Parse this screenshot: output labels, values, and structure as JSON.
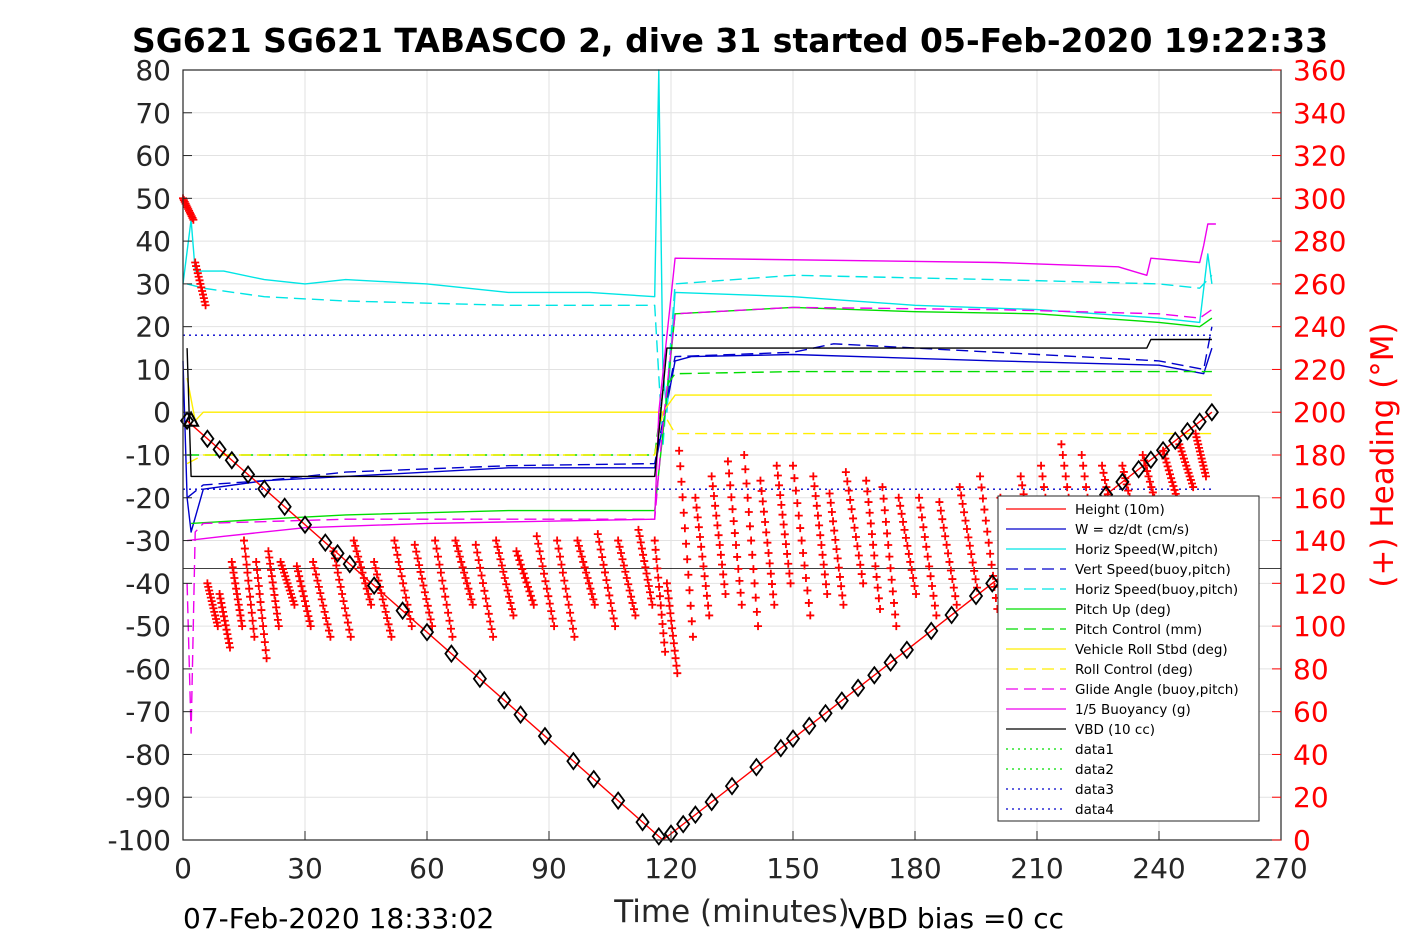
{
  "chart_data": {
    "type": "line",
    "title": "SG621 SG621 TABASCO 2, dive 31 started 05-Feb-2020 19:22:33",
    "xlabel": "Time (minutes)",
    "ylabel": "",
    "y2label": "(+) Heading (°M)",
    "xlim": [
      0,
      270
    ],
    "ylim": [
      -100,
      80
    ],
    "y2lim": [
      0,
      360
    ],
    "x_ticks": [
      "0",
      "30",
      "60",
      "90",
      "120",
      "150",
      "180",
      "210",
      "240",
      "270"
    ],
    "y_ticks": [
      "80",
      "70",
      "60",
      "50",
      "40",
      "30",
      "20",
      "10",
      "0",
      "-10",
      "-20",
      "-30",
      "-40",
      "-50",
      "-60",
      "-70",
      "-80",
      "-90",
      "-100"
    ],
    "y2_ticks": [
      "360",
      "340",
      "320",
      "300",
      "280",
      "260",
      "240",
      "220",
      "200",
      "180",
      "160",
      "140",
      "120",
      "100",
      "80",
      "60",
      "40",
      "20",
      "0"
    ],
    "grid": true,
    "legend_position": "bottom-right",
    "footer_left": "07-Feb-2020 18:33:02",
    "footer_right": "VBD bias =0 cc",
    "series": [
      {
        "name": "Height (10m)",
        "color": "#ff0000",
        "style": "solid",
        "points": [
          [
            1,
            -2
          ],
          [
            118,
            -100
          ],
          [
            253,
            0
          ]
        ]
      },
      {
        "name": "W = dz/dt (cm/s)",
        "color": "#0000cc",
        "style": "solid",
        "points": [
          [
            0,
            12
          ],
          [
            1,
            -20
          ],
          [
            2,
            -28
          ],
          [
            5,
            -18
          ],
          [
            20,
            -16
          ],
          [
            40,
            -15
          ],
          [
            80,
            -13
          ],
          [
            116,
            -13
          ],
          [
            118,
            -3
          ],
          [
            121,
            12
          ],
          [
            125,
            13
          ],
          [
            150,
            13.5
          ],
          [
            200,
            12
          ],
          [
            240,
            11
          ],
          [
            251,
            9
          ],
          [
            253,
            15
          ]
        ]
      },
      {
        "name": "Horiz Speed(W,pitch)",
        "color": "#00e5e5",
        "style": "solid",
        "points": [
          [
            0,
            30
          ],
          [
            2,
            45
          ],
          [
            3,
            33
          ],
          [
            10,
            33
          ],
          [
            20,
            31
          ],
          [
            30,
            30
          ],
          [
            40,
            31
          ],
          [
            60,
            30
          ],
          [
            80,
            28
          ],
          [
            100,
            28
          ],
          [
            116,
            27
          ],
          [
            117,
            80
          ],
          [
            118,
            10
          ],
          [
            119,
            0
          ],
          [
            121,
            28
          ],
          [
            150,
            27
          ],
          [
            180,
            25
          ],
          [
            210,
            24
          ],
          [
            240,
            22
          ],
          [
            250,
            21
          ],
          [
            252,
            37
          ],
          [
            253,
            30
          ]
        ]
      },
      {
        "name": "Vert Speed(buoy,pitch)",
        "color": "#0000cc",
        "style": "dashed",
        "points": [
          [
            1,
            -20
          ],
          [
            5,
            -17
          ],
          [
            20,
            -16
          ],
          [
            40,
            -14
          ],
          [
            80,
            -12.5
          ],
          [
            116,
            -12
          ],
          [
            118,
            -2
          ],
          [
            121,
            13
          ],
          [
            150,
            14
          ],
          [
            160,
            16
          ],
          [
            200,
            14
          ],
          [
            240,
            12
          ],
          [
            251,
            10
          ],
          [
            253,
            20
          ]
        ]
      },
      {
        "name": "Horiz Speed(buoy,pitch)",
        "color": "#00e5e5",
        "style": "dashed",
        "points": [
          [
            1,
            30
          ],
          [
            5,
            29
          ],
          [
            20,
            27
          ],
          [
            40,
            26
          ],
          [
            80,
            25
          ],
          [
            116,
            25
          ],
          [
            118,
            -8
          ],
          [
            121,
            30
          ],
          [
            150,
            32
          ],
          [
            200,
            31
          ],
          [
            240,
            30
          ],
          [
            250,
            29
          ],
          [
            253,
            32
          ]
        ]
      },
      {
        "name": "Pitch Up (deg)",
        "color": "#00dd00",
        "style": "solid",
        "points": [
          [
            2,
            -26
          ],
          [
            20,
            -25
          ],
          [
            40,
            -24
          ],
          [
            80,
            -23
          ],
          [
            116,
            -23
          ],
          [
            118,
            -5
          ],
          [
            121,
            23
          ],
          [
            150,
            24.5
          ],
          [
            180,
            23.5
          ],
          [
            210,
            23
          ],
          [
            240,
            21
          ],
          [
            250,
            20
          ],
          [
            253,
            22
          ]
        ]
      },
      {
        "name": "Pitch Control (mm)",
        "color": "#00dd00",
        "style": "dashed",
        "points": [
          [
            1,
            -10
          ],
          [
            40,
            -10
          ],
          [
            116,
            -10
          ],
          [
            118,
            5
          ],
          [
            121,
            9
          ],
          [
            150,
            9.5
          ],
          [
            200,
            9.5
          ],
          [
            240,
            9.5
          ],
          [
            253,
            9.5
          ]
        ]
      },
      {
        "name": "Vehicle Roll Stbd (deg)",
        "color": "#ffee00",
        "style": "solid",
        "points": [
          [
            1,
            8
          ],
          [
            3,
            -2
          ],
          [
            5,
            0
          ],
          [
            116,
            0
          ],
          [
            118,
            0
          ],
          [
            121,
            4
          ],
          [
            253,
            4
          ]
        ]
      },
      {
        "name": "Roll Control (deg)",
        "color": "#ffee00",
        "style": "dashed",
        "points": [
          [
            1,
            -12
          ],
          [
            5,
            -10
          ],
          [
            116,
            -10
          ],
          [
            118,
            0
          ],
          [
            121,
            -5
          ],
          [
            253,
            -5
          ]
        ]
      },
      {
        "name": "Glide Angle (buoy,pitch)",
        "color": "#ee00ee",
        "style": "dashed",
        "points": [
          [
            1,
            -40
          ],
          [
            2,
            -75
          ],
          [
            3,
            -28
          ],
          [
            5,
            -26
          ],
          [
            40,
            -25
          ],
          [
            116,
            -25
          ],
          [
            118,
            -3
          ],
          [
            121,
            23
          ],
          [
            150,
            24.5
          ],
          [
            200,
            24
          ],
          [
            240,
            23
          ],
          [
            250,
            22
          ],
          [
            253,
            24
          ]
        ]
      },
      {
        "name": "1/5 Buoyancy (g)",
        "color": "#ee00ee",
        "style": "solid",
        "points": [
          [
            1,
            -30
          ],
          [
            10,
            -29
          ],
          [
            30,
            -27
          ],
          [
            60,
            -26
          ],
          [
            116,
            -25
          ],
          [
            117,
            0
          ],
          [
            121,
            36
          ],
          [
            200,
            35
          ],
          [
            230,
            34
          ],
          [
            237,
            32
          ],
          [
            238,
            36
          ],
          [
            250,
            35
          ],
          [
            251,
            39
          ],
          [
            252,
            44
          ],
          [
            254,
            44
          ]
        ]
      },
      {
        "name": "VBD (10 cc)",
        "color": "#000000",
        "style": "solid",
        "points": [
          [
            1,
            15
          ],
          [
            2,
            -15
          ],
          [
            116,
            -15
          ],
          [
            117,
            -5
          ],
          [
            119,
            15
          ],
          [
            237,
            15
          ],
          [
            238,
            17
          ],
          [
            253,
            17
          ]
        ]
      },
      {
        "name": "data1",
        "color": "#00dd00",
        "style": "dotted",
        "points": []
      },
      {
        "name": "data2",
        "color": "#00dd00",
        "style": "dotted",
        "points": []
      },
      {
        "name": "data3",
        "color": "#0000cc",
        "style": "dotted",
        "points": [
          [
            0,
            18
          ],
          [
            253,
            18
          ]
        ]
      },
      {
        "name": "data4",
        "color": "#0000cc",
        "style": "dotted",
        "points": [
          [
            0,
            -18
          ],
          [
            253,
            -18
          ]
        ]
      }
    ],
    "reference_lines": [
      {
        "y": -36.5,
        "color": "#000000"
      }
    ],
    "depth_markers": {
      "color": "#000000",
      "x": [
        1,
        6,
        9,
        12,
        16,
        20,
        25,
        30,
        35,
        38,
        41,
        47,
        54,
        60,
        66,
        73,
        79,
        83,
        89,
        96,
        101,
        107,
        113,
        117,
        120,
        123,
        126,
        130,
        135,
        141,
        147,
        150,
        154,
        158,
        162,
        166,
        170,
        174,
        178,
        184,
        189,
        195,
        199,
        205,
        210,
        215,
        220,
        223,
        227,
        231,
        235,
        238,
        241,
        244,
        247,
        250,
        253
      ]
    },
    "heading": {
      "name": "(+) Heading (°M)",
      "color": "#ff0000",
      "marker": "+",
      "axis": "right",
      "cycles": [
        [
          0,
          300,
          290
        ],
        [
          3,
          270,
          250
        ],
        [
          6,
          120,
          100
        ],
        [
          9,
          115,
          90
        ],
        [
          12,
          130,
          100
        ],
        [
          15,
          140,
          95
        ],
        [
          18,
          130,
          85
        ],
        [
          21,
          135,
          100
        ],
        [
          24,
          130,
          110
        ],
        [
          28,
          128,
          100
        ],
        [
          32,
          130,
          95
        ],
        [
          37,
          135,
          95
        ],
        [
          42,
          140,
          110
        ],
        [
          47,
          130,
          95
        ],
        [
          52,
          140,
          100
        ],
        [
          57,
          138,
          100
        ],
        [
          62,
          140,
          95
        ],
        [
          67,
          140,
          110
        ],
        [
          72,
          138,
          95
        ],
        [
          77,
          140,
          105
        ],
        [
          82,
          135,
          110
        ],
        [
          87,
          142,
          100
        ],
        [
          92,
          140,
          95
        ],
        [
          97,
          140,
          110
        ],
        [
          102,
          143,
          100
        ],
        [
          107,
          140,
          105
        ],
        [
          112,
          145,
          110
        ],
        [
          116,
          140,
          88
        ],
        [
          119,
          120,
          78
        ],
        [
          122,
          182,
          95
        ],
        [
          126,
          160,
          105
        ],
        [
          130,
          170,
          115
        ],
        [
          134,
          177,
          110
        ],
        [
          138,
          180,
          100
        ],
        [
          142,
          168,
          110
        ],
        [
          146,
          175,
          120
        ],
        [
          150,
          175,
          105
        ],
        [
          155,
          170,
          115
        ],
        [
          159,
          162,
          110
        ],
        [
          163,
          172,
          120
        ],
        [
          168,
          168,
          108
        ],
        [
          172,
          165,
          100
        ],
        [
          176,
          160,
          115
        ],
        [
          181,
          160,
          105
        ],
        [
          186,
          158,
          110
        ],
        [
          191,
          165,
          118
        ],
        [
          196,
          170,
          108
        ],
        [
          201,
          160,
          110
        ],
        [
          206,
          170,
          120
        ],
        [
          211,
          175,
          115
        ],
        [
          216,
          185,
          125
        ],
        [
          221,
          180,
          120
        ],
        [
          226,
          175,
          135
        ],
        [
          231,
          175,
          140
        ],
        [
          236,
          180,
          150
        ],
        [
          241,
          182,
          160
        ],
        [
          245,
          185,
          165
        ],
        [
          249,
          190,
          170
        ],
        [
          252,
          190,
          180
        ]
      ]
    }
  }
}
